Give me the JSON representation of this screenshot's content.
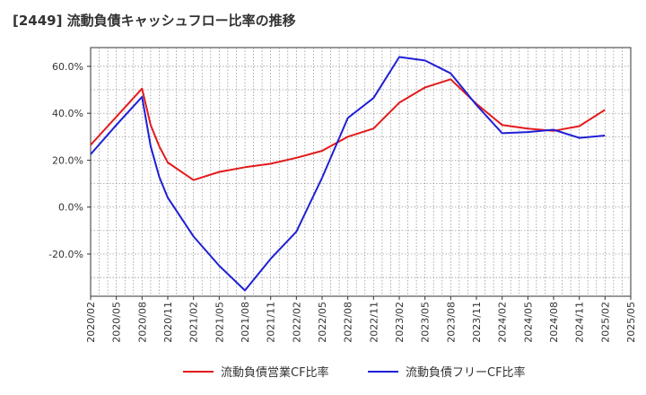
{
  "chart_data": {
    "type": "line",
    "title": "[2449]  流動負債キャッシュフロー比率の推移",
    "xlabel": "",
    "ylabel": "",
    "x_range": [
      "2020/02",
      "2025/05"
    ],
    "ylim": [
      -38,
      68
    ],
    "y_ticks": [
      60,
      40,
      20,
      0,
      -20
    ],
    "y_tick_labels": [
      "60.0%",
      "40.0%",
      "20.0%",
      "0.0%",
      "-20.0%"
    ],
    "x_tick_labels": [
      "2020/02",
      "2020/05",
      "2020/08",
      "2020/11",
      "2021/02",
      "2021/05",
      "2021/08",
      "2021/11",
      "2022/02",
      "2022/05",
      "2022/08",
      "2022/11",
      "2023/02",
      "2023/05",
      "2023/08",
      "2023/11",
      "2024/02",
      "2024/05",
      "2024/08",
      "2024/11",
      "2025/02",
      "2025/05"
    ],
    "grid": true,
    "legend_position": "bottom",
    "series": [
      {
        "name": "流動負債営業CF比率",
        "color": "#e31a1c",
        "points": [
          [
            "2020/02",
            26.5
          ],
          [
            "2020/05",
            38.5
          ],
          [
            "2020/08",
            50.5
          ],
          [
            "2020/09",
            35.0
          ],
          [
            "2020/10",
            26.0
          ],
          [
            "2020/11",
            19.0
          ],
          [
            "2021/02",
            11.5
          ],
          [
            "2021/05",
            15.0
          ],
          [
            "2021/08",
            17.0
          ],
          [
            "2021/11",
            18.5
          ],
          [
            "2022/02",
            21.0
          ],
          [
            "2022/05",
            24.0
          ],
          [
            "2022/08",
            30.0
          ],
          [
            "2022/11",
            33.5
          ],
          [
            "2023/02",
            44.5
          ],
          [
            "2023/05",
            51.0
          ],
          [
            "2023/08",
            54.5
          ],
          [
            "2023/11",
            44.0
          ],
          [
            "2024/02",
            35.0
          ],
          [
            "2024/05",
            33.5
          ],
          [
            "2024/08",
            32.5
          ],
          [
            "2024/11",
            34.5
          ],
          [
            "2025/02",
            41.5
          ]
        ]
      },
      {
        "name": "流動負債フリーCF比率",
        "color": "#1f1fd6",
        "points": [
          [
            "2020/02",
            22.5
          ],
          [
            "2020/05",
            35.0
          ],
          [
            "2020/08",
            47.0
          ],
          [
            "2020/09",
            26.0
          ],
          [
            "2020/10",
            13.0
          ],
          [
            "2020/11",
            4.0
          ],
          [
            "2021/02",
            -12.5
          ],
          [
            "2021/05",
            -25.0
          ],
          [
            "2021/08",
            -35.5
          ],
          [
            "2021/11",
            -22.0
          ],
          [
            "2022/02",
            -10.5
          ],
          [
            "2022/05",
            12.5
          ],
          [
            "2022/08",
            38.0
          ],
          [
            "2022/11",
            46.5
          ],
          [
            "2023/02",
            64.0
          ],
          [
            "2023/05",
            62.5
          ],
          [
            "2023/08",
            57.0
          ],
          [
            "2023/11",
            43.5
          ],
          [
            "2024/02",
            31.5
          ],
          [
            "2024/05",
            32.0
          ],
          [
            "2024/08",
            33.0
          ],
          [
            "2024/11",
            29.5
          ],
          [
            "2025/02",
            30.5
          ]
        ]
      }
    ]
  }
}
